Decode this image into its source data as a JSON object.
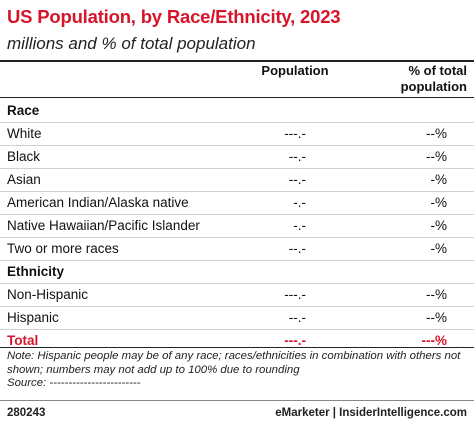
{
  "header": {
    "title": "US Population, by Race/Ethnicity, 2023",
    "subtitle": "millions and % of total population"
  },
  "table": {
    "columns": [
      "Population",
      "% of total population"
    ],
    "sections": [
      {
        "title": "Race",
        "rows": [
          [
            "White",
            "---.-",
            "--%"
          ],
          [
            "Black",
            "--.-",
            "--%"
          ],
          [
            "Asian",
            "--.-",
            "-%"
          ],
          [
            "American Indian/Alaska native",
            "-.-",
            "-%"
          ],
          [
            "Native Hawaiian/Pacific Islander",
            "-.-",
            "-%"
          ],
          [
            "Two or more races",
            "--.-",
            "-%"
          ]
        ]
      },
      {
        "title": "Ethnicity",
        "rows": [
          [
            "Non-Hispanic",
            "---.-",
            "--%"
          ],
          [
            "Hispanic",
            "--.-",
            "--%"
          ]
        ]
      }
    ],
    "total": [
      "Total",
      "---.-",
      "---%"
    ]
  },
  "notes": [
    "Note: Hispanic people may be of any race; races/ethnicities in combination with others not shown; numbers may not add up to 100% due to rounding",
    "Source: ------------------------"
  ],
  "footer": {
    "id": "280243",
    "source": "eMarketer | InsiderIntelligence.com"
  }
}
